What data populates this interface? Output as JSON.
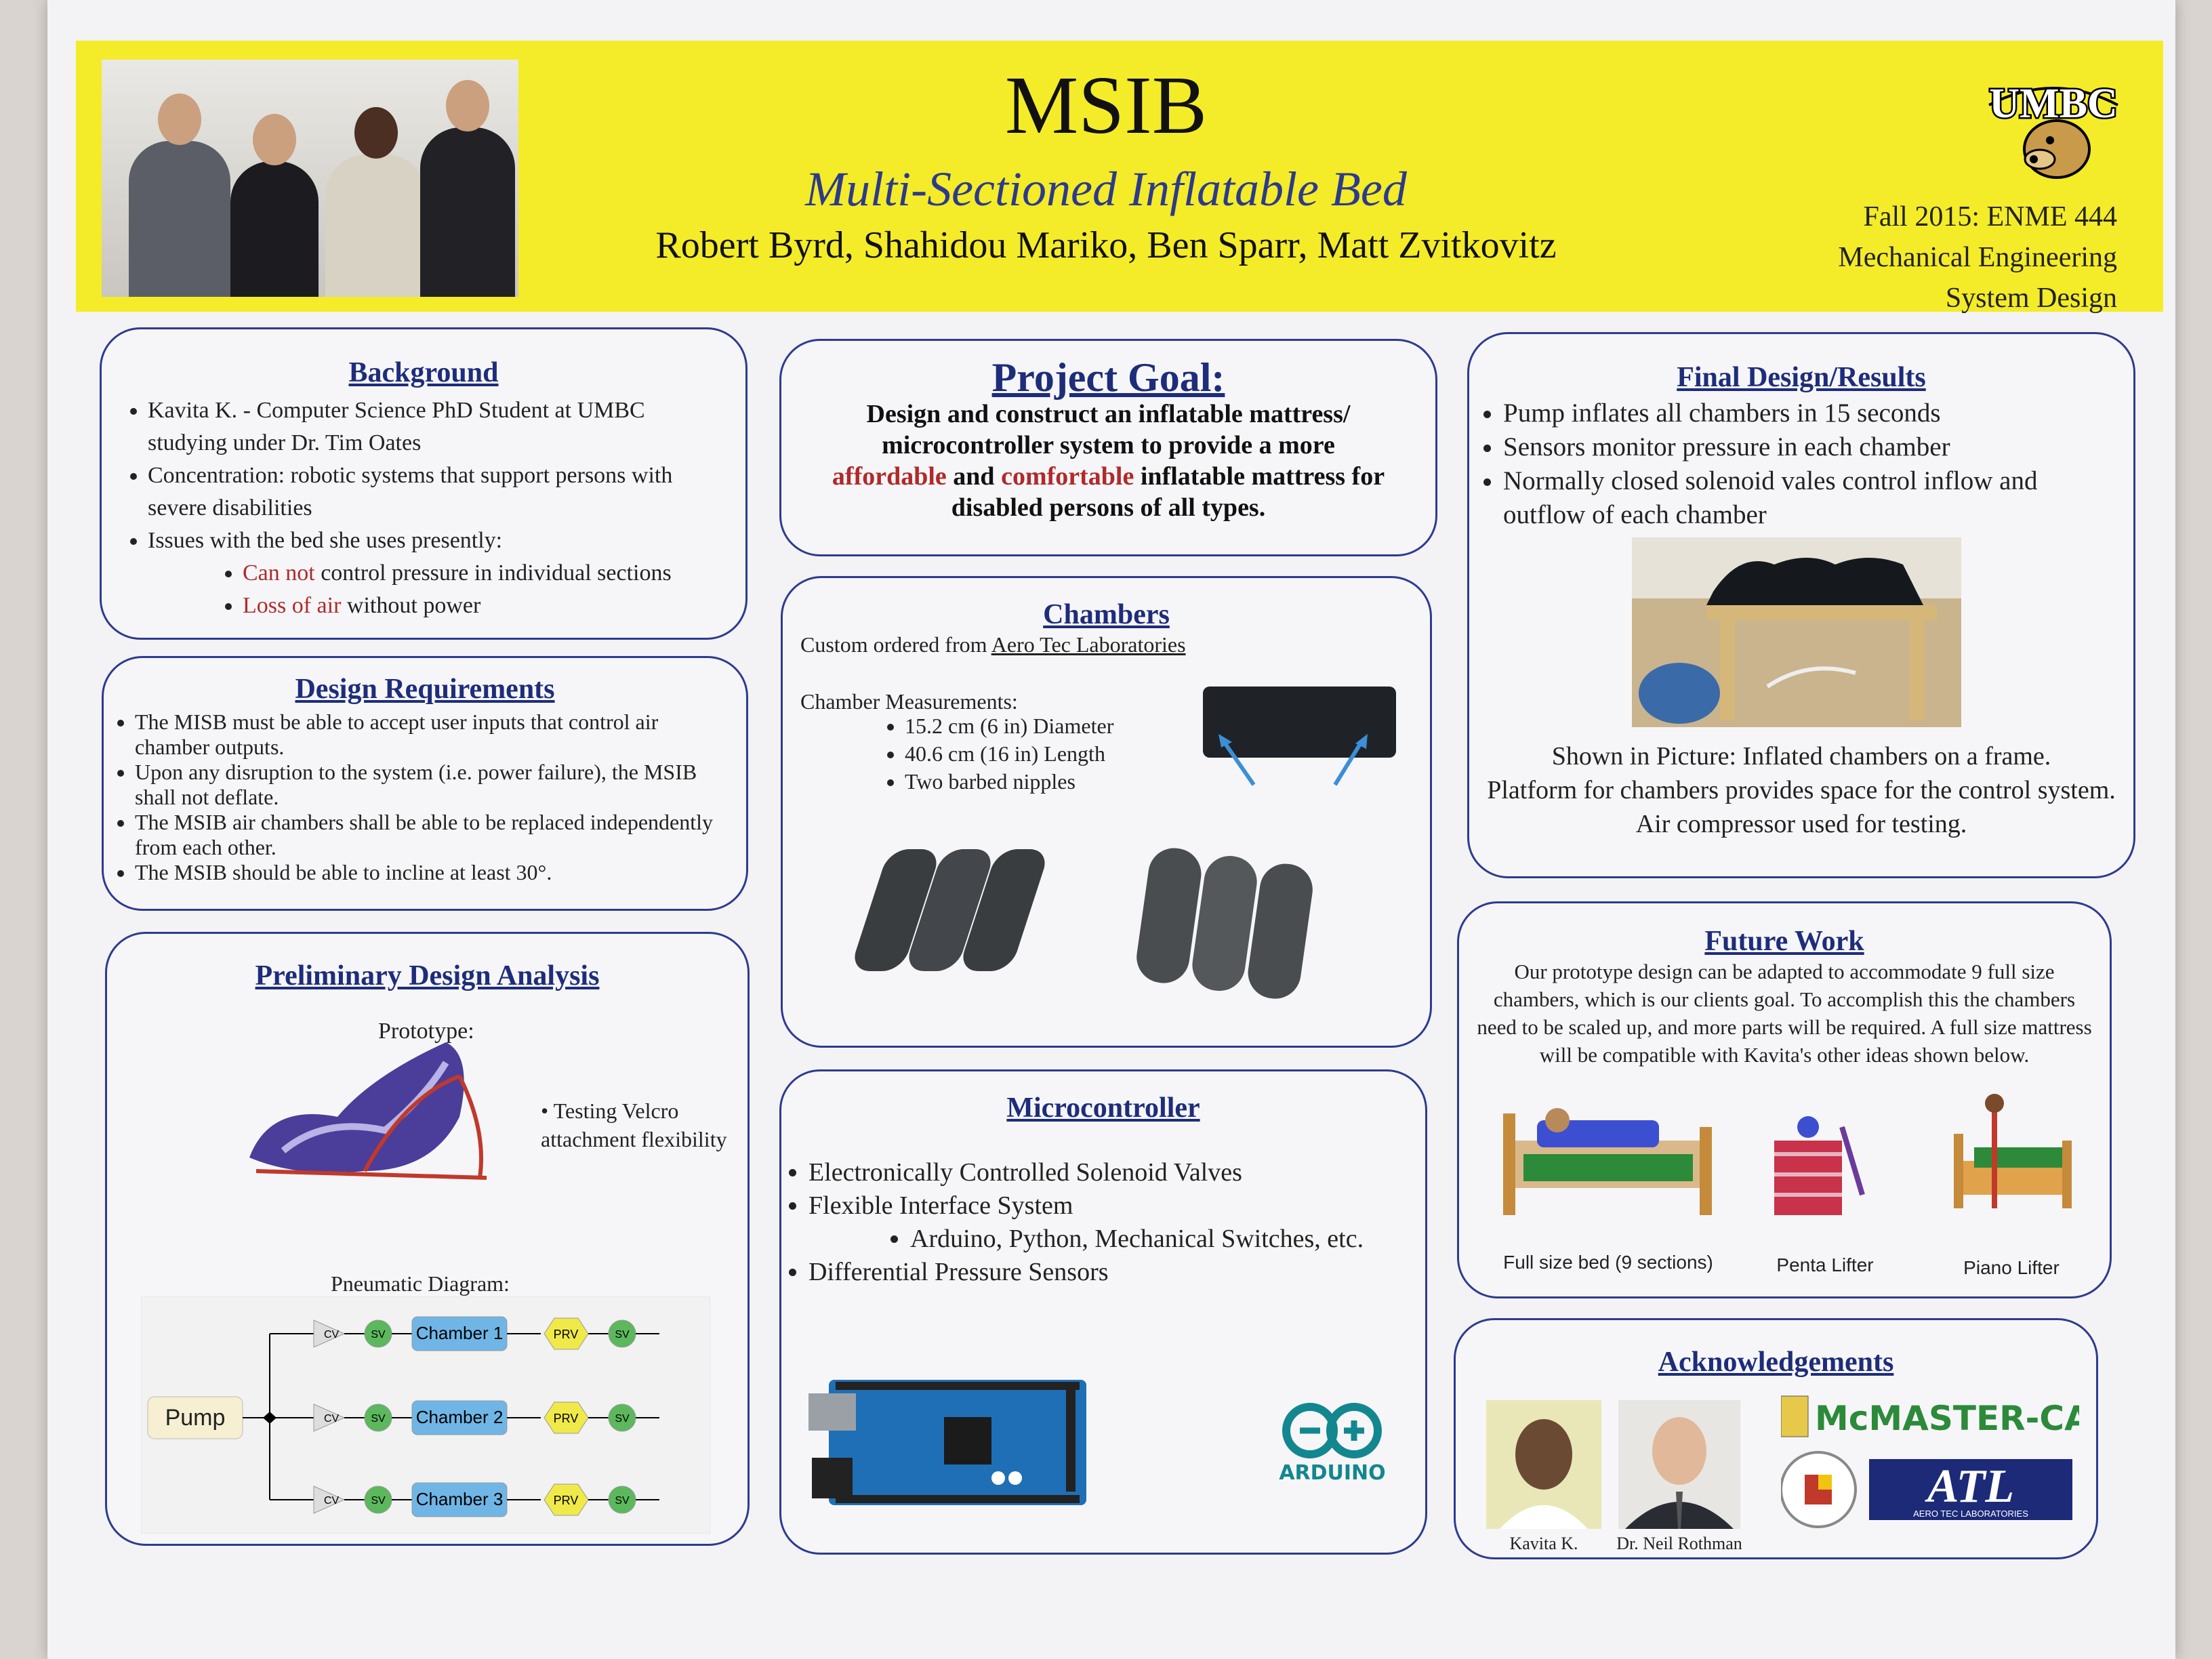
{
  "header": {
    "title": "MSIB",
    "subtitle": "Multi-Sectioned Inflatable Bed",
    "authors": "Robert Byrd, Shahidou Mariko, Ben Sparr, Matt Zvitkovitz",
    "course_line1": "Fall 2015:  ENME 444",
    "course_line2": "Mechanical Engineering",
    "course_line3": "System Design",
    "logo_text": "UMBC"
  },
  "background": {
    "heading": "Background",
    "b1": "Kavita K. - Computer Science PhD Student at UMBC studying under Dr. Tim Oates",
    "b2": "Concentration: robotic systems that support persons with severe disabilities",
    "b3": "Issues with the bed she uses presently:",
    "s1_red": "Can not",
    "s1_rest": " control pressure in individual sections",
    "s2_red": "Loss of air",
    "s2_rest": " without power"
  },
  "requirements": {
    "heading": "Design Requirements",
    "items": [
      "The MISB must be able to accept user inputs that control air chamber outputs.",
      "Upon any disruption to the system (i.e. power failure), the MSIB shall not deflate.",
      "The MSIB air chambers shall be able to be replaced independently from each other.",
      "The MSIB should be able to incline at least 30°."
    ]
  },
  "preliminary": {
    "heading": "Preliminary Design Analysis",
    "prototype_label": "Prototype:",
    "bullet": "Testing Velcro attachment flexibility",
    "diagram_label": "Pneumatic Diagram:",
    "pump": "Pump",
    "cv": "CV",
    "sv": "SV",
    "prv": "PRV",
    "chambers": [
      "Chamber 1",
      "Chamber 2",
      "Chamber 3"
    ]
  },
  "goal": {
    "heading": "Project Goal:",
    "line1": "Design and construct an inflatable mattress/",
    "line2": "microcontroller system to provide a more",
    "affordable": "affordable",
    "and": " and ",
    "comfortable": "comfortable",
    "line3_rest": " inflatable mattress for",
    "line4": "disabled persons of all types."
  },
  "chambers": {
    "heading": "Chambers",
    "custom": "Custom ordered from ",
    "vendor": "Aero Tec Laboratories",
    "meas_label": "Chamber Measurements:",
    "items": [
      "15.2 cm (6 in) Diameter",
      "40.6 cm  (16 in) Length",
      "Two barbed nipples"
    ]
  },
  "micro": {
    "heading": "Microcontroller",
    "b1": "Electronically Controlled Solenoid Valves",
    "b2": "Flexible Interface System",
    "sub": "Arduino, Python, Mechanical Switches, etc.",
    "b3": "Differential Pressure Sensors",
    "arduino_label": "ARDUINO"
  },
  "final": {
    "heading": "Final Design/Results",
    "b1": "Pump inflates all chambers in 15 seconds",
    "b2": "Sensors monitor pressure in each chamber",
    "b3": "Normally closed solenoid vales control inflow and outflow of each chamber",
    "cap1": "Shown in Picture: Inflated chambers on a frame.",
    "cap2": "Platform for chambers provides space for the control system.",
    "cap3": "Air compressor used for testing."
  },
  "future": {
    "heading": "Future Work",
    "text": "Our prototype design can be adapted to accommodate 9 full size chambers, which is our clients goal.  To accomplish this the chambers need to be scaled up, and more parts will be required.  A full size mattress will be compatible with Kavita's other ideas shown below.",
    "cap1": "Full size bed (9 sections)",
    "cap2": "Penta Lifter",
    "cap3": "Piano Lifter"
  },
  "ack": {
    "heading": "Acknowledgements",
    "p1": "Kavita K.",
    "p2": "Dr. Neil Rothman",
    "mcmaster": "McMASTER-CARR",
    "atl": "ATL",
    "atl_sub": "AERO TEC LABORATORIES"
  }
}
